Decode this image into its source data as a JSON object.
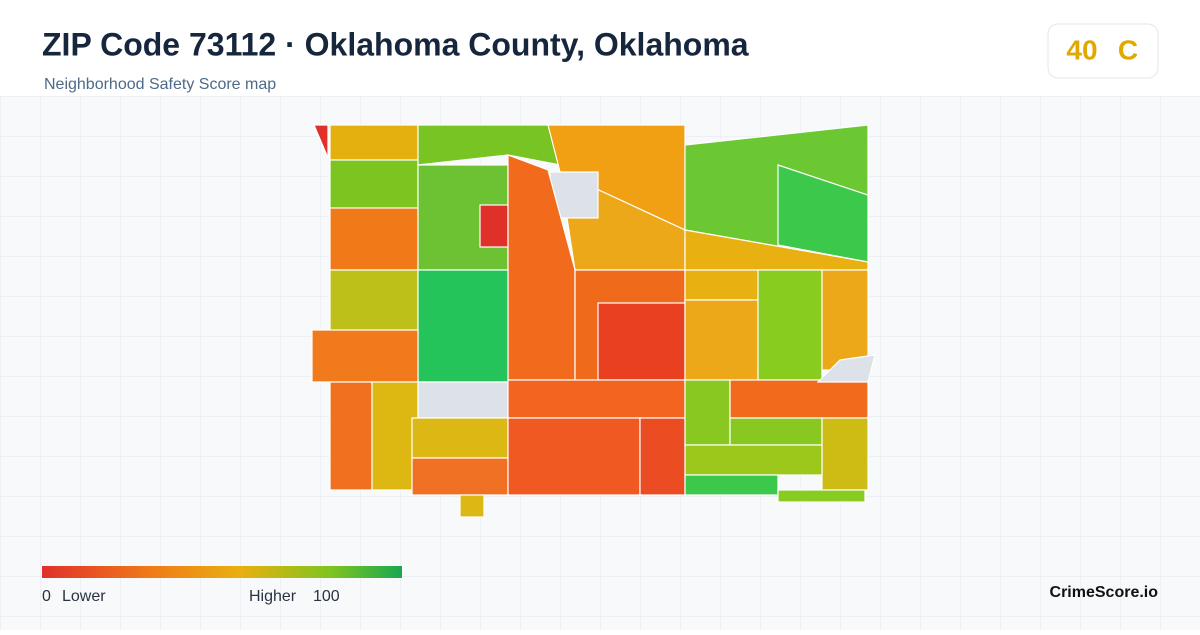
{
  "header": {
    "title": "ZIP Code 73112 · Oklahoma County, Oklahoma",
    "subtitle": "Neighborhood Safety Score map"
  },
  "score": {
    "value": 40,
    "grade": "C"
  },
  "legend": {
    "min": 0,
    "min_label": "Lower",
    "max_label": "Higher",
    "max": 100
  },
  "brand": "CrimeScore.io"
}
